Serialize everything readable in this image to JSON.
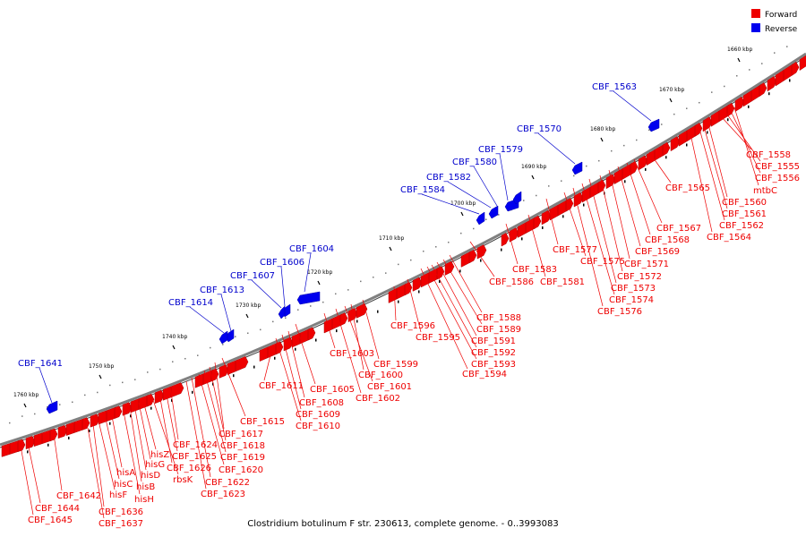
{
  "caption": "Clostridium botulinum F str. 230613, complete genome. - 0..3993083",
  "legend": [
    {
      "label": "Forward",
      "color": "#ee0000"
    },
    {
      "label": "Reverse",
      "color": "#0000ee"
    }
  ],
  "kbp_ticks": [
    "1660 kbp",
    "1670 kbp",
    "1680 kbp",
    "1690 kbp",
    "1700 kbp",
    "1710 kbp",
    "1720 kbp",
    "1730 kbp",
    "1740 kbp",
    "1750 kbp",
    "1760 kbp"
  ],
  "reverse_genes": [
    "CBF_1563",
    "CBF_1570",
    "CBF_1579",
    "CBF_1580",
    "CBF_1582",
    "CBF_1584",
    "CBF_1604",
    "CBF_1606",
    "CBF_1607",
    "CBF_1613",
    "CBF_1614",
    "CBF_1641"
  ],
  "forward_genes": [
    "CBF_1558",
    "CBF_1555",
    "CBF_1556",
    "mtbC",
    "CBF_1560",
    "CBF_1561",
    "CBF_1562",
    "CBF_1564",
    "CBF_1565",
    "CBF_1567",
    "CBF_1568",
    "CBF_1569",
    "CBF_1571",
    "CBF_1572",
    "CBF_1573",
    "CBF_1574",
    "CBF_1576",
    "CBF_1575",
    "CBF_1577",
    "CBF_1581",
    "CBF_1583",
    "CBF_1586",
    "CBF_1588",
    "CBF_1589",
    "CBF_1591",
    "CBF_1592",
    "CBF_1593",
    "CBF_1594",
    "CBF_1595",
    "CBF_1596",
    "CBF_1599",
    "CBF_1600",
    "CBF_1601",
    "CBF_1602",
    "CBF_1603",
    "CBF_1605",
    "CBF_1608",
    "CBF_1609",
    "CBF_1610",
    "CBF_1611",
    "CBF_1615",
    "CBF_1617",
    "CBF_1618",
    "CBF_1619",
    "CBF_1620",
    "CBF_1622",
    "CBF_1623",
    "CBF_1624",
    "CBF_1625",
    "CBF_1626",
    "rbsK",
    "hisZ",
    "hisG",
    "hisD",
    "hisB",
    "hisH",
    "hisA",
    "hisC",
    "hisF",
    "CBF_1636",
    "CBF_1637",
    "CBF_1642",
    "CBF_1644",
    "CBF_1645"
  ]
}
